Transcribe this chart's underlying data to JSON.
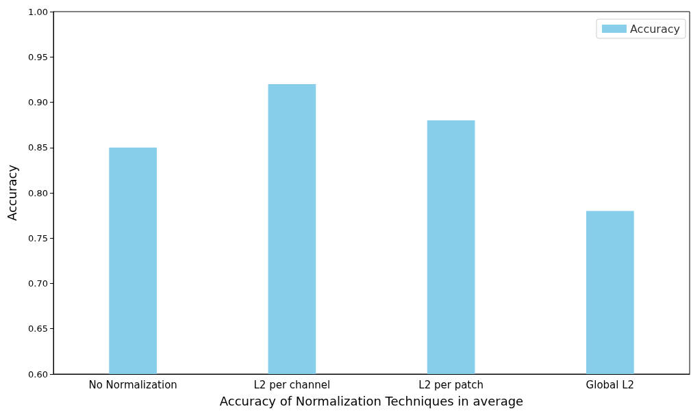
{
  "chart_data": {
    "type": "bar",
    "xlabel": "Accuracy of Normalization Techniques in average",
    "ylabel": "Accuracy",
    "categories": [
      "No Normalization",
      "L2 per channel",
      "L2 per patch",
      "Global L2"
    ],
    "series": [
      {
        "name": "Accuracy",
        "color": "#87ceeb",
        "values": [
          0.85,
          0.92,
          0.88,
          0.78
        ]
      }
    ],
    "ylim": [
      0.6,
      1.0
    ],
    "yticks": [
      {
        "value": 0.6,
        "label": "0.60"
      },
      {
        "value": 0.65,
        "label": "0.65"
      },
      {
        "value": 0.7,
        "label": "0.70"
      },
      {
        "value": 0.75,
        "label": "0.75"
      },
      {
        "value": 0.8,
        "label": "0.80"
      },
      {
        "value": 0.85,
        "label": "0.85"
      },
      {
        "value": 0.9,
        "label": "0.90"
      },
      {
        "value": 0.95,
        "label": "0.95"
      },
      {
        "value": 1.0,
        "label": "1.00"
      }
    ],
    "legend": "top right"
  }
}
